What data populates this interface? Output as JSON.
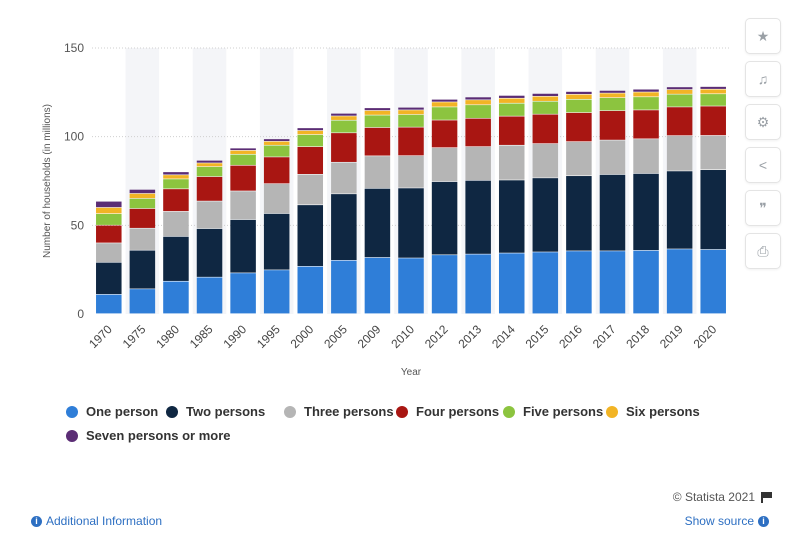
{
  "sidebar": {
    "buttons": [
      {
        "name": "star-icon",
        "glyph": "★"
      },
      {
        "name": "bell-icon",
        "glyph": "🔔"
      },
      {
        "name": "gear-icon",
        "glyph": "⚙"
      },
      {
        "name": "share-icon",
        "glyph": "⋖"
      },
      {
        "name": "quote-icon",
        "glyph": "❞"
      },
      {
        "name": "print-icon",
        "glyph": "⎙"
      }
    ]
  },
  "footer": {
    "credit": "© Statista 2021",
    "additional_info": "Additional Information",
    "show_source": "Show source"
  },
  "chart_data": {
    "type": "bar",
    "stacked": true,
    "xlabel": "Year",
    "ylabel": "Number of households (in millions)",
    "ylim": [
      0,
      150
    ],
    "yticks": [
      0,
      50,
      100,
      150
    ],
    "grid": true,
    "legend_position": "bottom",
    "categories": [
      "1970",
      "1975",
      "1980",
      "1985",
      "1990",
      "1995",
      "2000",
      "2005",
      "2009",
      "2010",
      "2012",
      "2013",
      "2014",
      "2015",
      "2016",
      "2017",
      "2018",
      "2019",
      "2020"
    ],
    "series": [
      {
        "name": "One person",
        "color": "#2f7ed8",
        "values": [
          10.9,
          14.0,
          18.3,
          20.6,
          23.0,
          24.7,
          26.7,
          30.1,
          31.7,
          31.4,
          33.2,
          33.6,
          34.2,
          34.8,
          35.4,
          35.4,
          35.7,
          36.5,
          36.2
        ]
      },
      {
        "name": "Two persons",
        "color": "#0f2742",
        "values": [
          18.1,
          21.8,
          25.3,
          27.4,
          30.1,
          31.8,
          34.7,
          37.5,
          39.0,
          39.5,
          41.3,
          41.6,
          41.2,
          41.8,
          42.4,
          43.1,
          43.4,
          44.0,
          45.0
        ]
      },
      {
        "name": "Three persons",
        "color": "#b5b5b5",
        "values": [
          10.9,
          12.4,
          14.1,
          15.5,
          16.1,
          16.8,
          17.2,
          17.8,
          18.3,
          18.2,
          19.1,
          19.0,
          19.6,
          19.3,
          19.2,
          19.4,
          19.5,
          19.9,
          19.3
        ]
      },
      {
        "name": "Four persons",
        "color": "#a91612",
        "values": [
          10.0,
          11.1,
          12.7,
          13.8,
          14.5,
          15.1,
          15.6,
          16.6,
          16.0,
          16.1,
          15.6,
          16.0,
          16.4,
          16.6,
          16.4,
          16.6,
          16.3,
          16.2,
          16.6
        ]
      },
      {
        "name": "Five persons",
        "color": "#8cc43f",
        "values": [
          6.5,
          5.7,
          5.6,
          5.6,
          6.2,
          6.6,
          6.8,
          7.1,
          7.0,
          7.1,
          7.4,
          7.6,
          7.3,
          7.3,
          7.5,
          7.3,
          7.4,
          7.2,
          6.9
        ]
      },
      {
        "name": "Six persons",
        "color": "#f2b425",
        "values": [
          3.5,
          2.8,
          2.3,
          2.1,
          2.2,
          2.2,
          2.3,
          2.4,
          2.6,
          2.6,
          2.8,
          2.8,
          2.8,
          2.8,
          2.8,
          2.6,
          2.7,
          2.6,
          2.6
        ]
      },
      {
        "name": "Seven persons or more",
        "color": "#5b2d75",
        "values": [
          3.5,
          2.3,
          1.7,
          1.5,
          1.3,
          1.4,
          1.5,
          1.5,
          1.5,
          1.5,
          1.5,
          1.6,
          1.6,
          1.6,
          1.6,
          1.5,
          1.6,
          1.5,
          1.5
        ]
      }
    ]
  }
}
